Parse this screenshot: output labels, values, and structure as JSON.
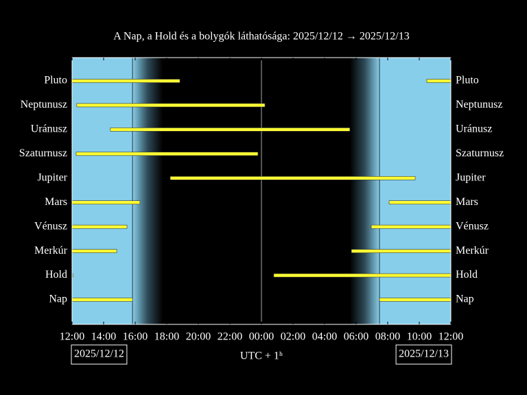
{
  "chart_data": {
    "type": "timeline",
    "title": "A Nap, a Hold és a bolygók láthatósága: 2025/12/12 → 2025/12/13",
    "xlabel": "UTC + 1ʰ",
    "dates": [
      "2025/12/12",
      "2025/12/13"
    ],
    "xlim": [
      12,
      36
    ],
    "xticks": [
      {
        "value": 12,
        "label": "12:00"
      },
      {
        "value": 14,
        "label": "14:00"
      },
      {
        "value": 16,
        "label": "16:00"
      },
      {
        "value": 18,
        "label": "18:00"
      },
      {
        "value": 20,
        "label": "20:00"
      },
      {
        "value": 22,
        "label": "22:00"
      },
      {
        "value": 24,
        "label": "00:00"
      },
      {
        "value": 26,
        "label": "02:00"
      },
      {
        "value": 28,
        "label": "04:00"
      },
      {
        "value": 30,
        "label": "06:00"
      },
      {
        "value": 32,
        "label": "08:00"
      },
      {
        "value": 34,
        "label": "10:00"
      },
      {
        "value": 36,
        "label": "12:00"
      }
    ],
    "sunset": 15.83,
    "dusk_end": 17.75,
    "midnight": 24,
    "dawn_start": 29.6,
    "sunrise": 31.48,
    "day_color": "#87ceeb",
    "bar_color": "#ffff33",
    "bodies": [
      {
        "name": "Pluto",
        "intervals": [
          [
            12,
            18.83
          ],
          [
            34.48,
            36
          ]
        ]
      },
      {
        "name": "Neptunusz",
        "intervals": [
          [
            12.3,
            24.22
          ]
        ]
      },
      {
        "name": "Uránusz",
        "intervals": [
          [
            14.43,
            29.6
          ]
        ]
      },
      {
        "name": "Szaturnusz",
        "intervals": [
          [
            12.26,
            23.78
          ]
        ]
      },
      {
        "name": "Jupiter",
        "intervals": [
          [
            18.22,
            33.74
          ]
        ]
      },
      {
        "name": "Mars",
        "intervals": [
          [
            12,
            16.3
          ],
          [
            32.09,
            36
          ]
        ]
      },
      {
        "name": "Vénusz",
        "intervals": [
          [
            12,
            15.48
          ],
          [
            30.96,
            36
          ]
        ]
      },
      {
        "name": "Merkúr",
        "intervals": [
          [
            12,
            14.83
          ],
          [
            29.7,
            36
          ]
        ]
      },
      {
        "name": "Hold",
        "intervals": [
          [
            12,
            12.05
          ],
          [
            24.78,
            36
          ]
        ]
      },
      {
        "name": "Nap",
        "intervals": [
          [
            12,
            15.83
          ],
          [
            31.48,
            36
          ]
        ]
      }
    ]
  }
}
